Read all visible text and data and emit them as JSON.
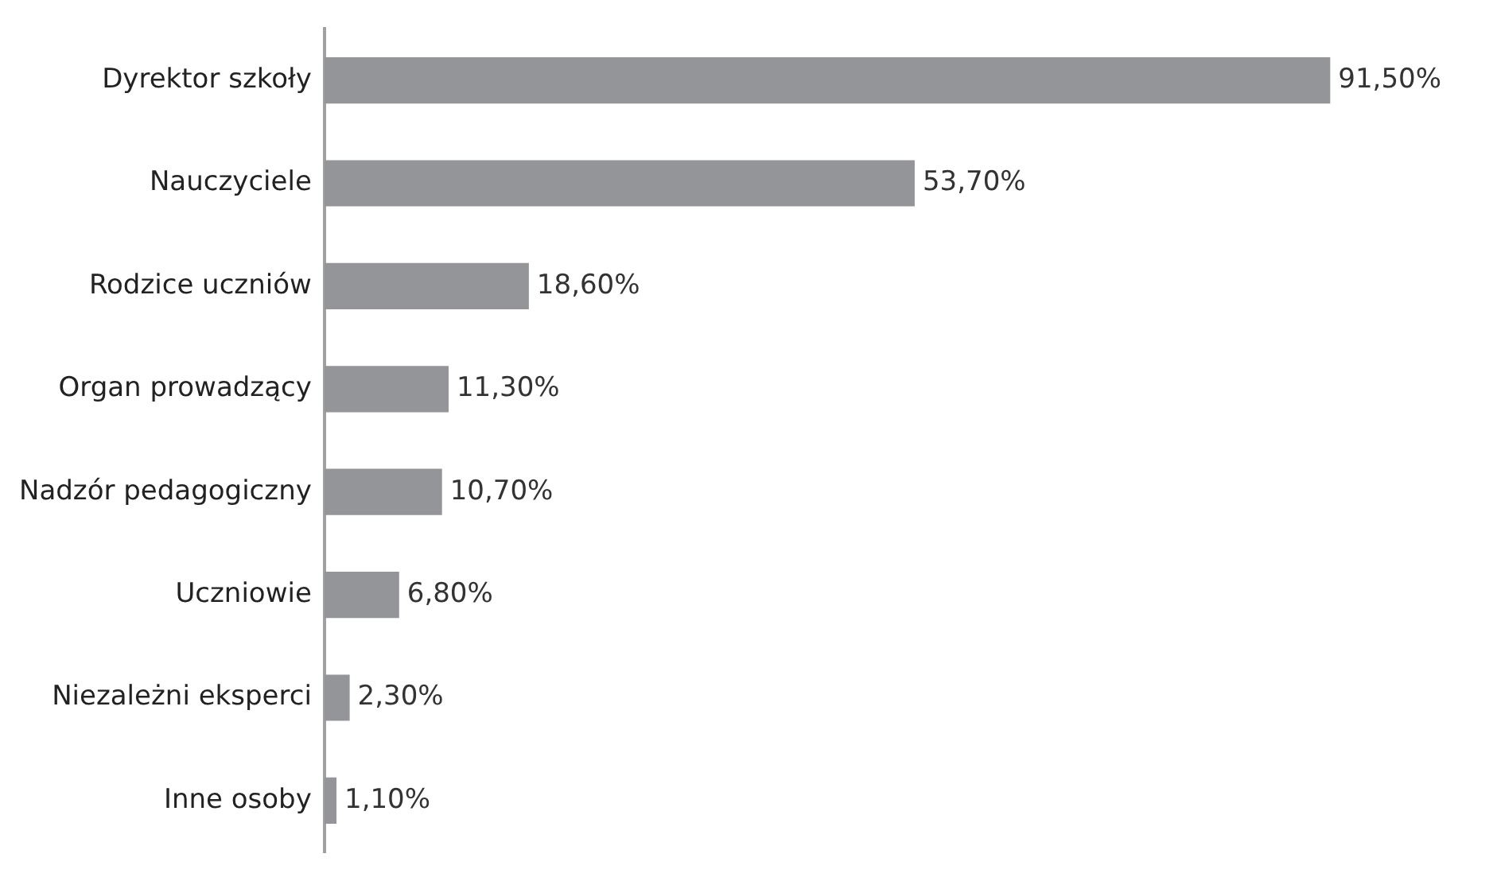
{
  "chart_data": {
    "type": "bar",
    "orientation": "horizontal",
    "categories": [
      "Dyrektor szkoły",
      "Nauczyciele",
      "Rodzice uczniów",
      "Organ prowadzący",
      "Nadzór pedagogiczny",
      "Uczniowie",
      "Niezależni eksperci",
      "Inne osoby"
    ],
    "values": [
      91.5,
      53.7,
      18.6,
      11.3,
      10.7,
      6.8,
      2.3,
      1.1
    ],
    "value_labels": [
      "91,50%",
      "53,70%",
      "18,60%",
      "11,30%",
      "10,70%",
      "6,80%",
      "2,30%",
      "1,10%"
    ],
    "color": "#939598",
    "grid": false,
    "legend": false
  }
}
